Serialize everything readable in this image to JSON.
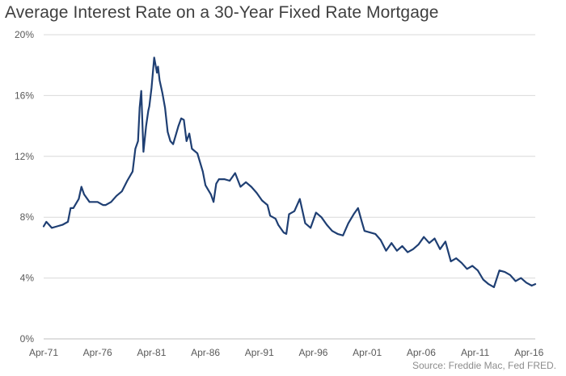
{
  "chart_data": {
    "type": "line",
    "title": "Average Interest Rate on a 30-Year Fixed Rate Mortgage",
    "source": "Source: Freddie Mac, Fed FRED.",
    "xlabel": "",
    "ylabel": "",
    "x_tick_labels": [
      "Apr-71",
      "Apr-76",
      "Apr-81",
      "Apr-86",
      "Apr-91",
      "Apr-96",
      "Apr-01",
      "Apr-06",
      "Apr-11",
      "Apr-16"
    ],
    "x_tick_years": [
      1971.25,
      1976.25,
      1981.25,
      1986.25,
      1991.25,
      1996.25,
      2001.25,
      2006.25,
      2011.25,
      2016.25
    ],
    "x_range": [
      1971.25,
      2016.83
    ],
    "y_tick_labels": [
      "0%",
      "4%",
      "8%",
      "12%",
      "16%",
      "20%"
    ],
    "y_ticks": [
      0,
      4,
      8,
      12,
      16,
      20
    ],
    "ylim": [
      0,
      20
    ],
    "grid": "horizontal",
    "line_color": "#1f3f73",
    "series": [
      {
        "x": [
          1971.25,
          1971.5,
          1971.75,
          1972.0,
          1972.5,
          1973.0,
          1973.5,
          1973.75,
          1974.0,
          1974.5,
          1974.75,
          1975.0,
          1975.5,
          1976.0,
          1976.25,
          1976.75,
          1977.0,
          1977.5,
          1978.0,
          1978.5,
          1979.0,
          1979.5,
          1979.75,
          1980.0,
          1980.15,
          1980.3,
          1980.5,
          1980.75,
          1980.95,
          1981.05,
          1981.25,
          1981.5,
          1981.75,
          1981.85,
          1982.0,
          1982.25,
          1982.5,
          1982.75,
          1983.0,
          1983.25,
          1983.5,
          1983.75,
          1984.0,
          1984.25,
          1984.5,
          1984.75,
          1985.0,
          1985.5,
          1986.0,
          1986.25,
          1986.75,
          1987.0,
          1987.25,
          1987.5,
          1988.0,
          1988.5,
          1989.0,
          1989.5,
          1990.0,
          1990.5,
          1991.0,
          1991.5,
          1992.0,
          1992.25,
          1992.75,
          1993.0,
          1993.5,
          1993.75,
          1994.0,
          1994.5,
          1995.0,
          1995.5,
          1996.0,
          1996.5,
          1997.0,
          1997.5,
          1998.0,
          1998.5,
          1999.0,
          1999.5,
          2000.0,
          2000.4,
          2000.75,
          2001.0,
          2001.5,
          2002.0,
          2002.5,
          2003.0,
          2003.5,
          2004.0,
          2004.5,
          2005.0,
          2005.5,
          2006.0,
          2006.5,
          2007.0,
          2007.5,
          2008.0,
          2008.5,
          2009.0,
          2009.5,
          2010.0,
          2010.5,
          2011.0,
          2011.5,
          2012.0,
          2012.5,
          2013.0,
          2013.5,
          2014.0,
          2014.5,
          2015.0,
          2015.5,
          2016.0,
          2016.5,
          2016.83
        ],
        "y": [
          7.4,
          7.7,
          7.5,
          7.3,
          7.4,
          7.5,
          7.7,
          8.6,
          8.6,
          9.2,
          10.0,
          9.5,
          9.0,
          9.0,
          9.0,
          8.8,
          8.8,
          9.0,
          9.4,
          9.7,
          10.4,
          11.0,
          12.5,
          13.0,
          15.2,
          16.3,
          12.3,
          14.0,
          15.0,
          15.3,
          16.5,
          18.5,
          17.5,
          17.9,
          17.0,
          16.2,
          15.2,
          13.6,
          13.0,
          12.8,
          13.4,
          14.0,
          14.5,
          14.4,
          13.0,
          13.5,
          12.5,
          12.2,
          11.0,
          10.1,
          9.5,
          9.0,
          10.2,
          10.5,
          10.5,
          10.4,
          10.9,
          10.0,
          10.3,
          10.0,
          9.6,
          9.1,
          8.8,
          8.1,
          7.9,
          7.5,
          7.0,
          6.9,
          8.2,
          8.4,
          9.2,
          7.6,
          7.3,
          8.3,
          8.0,
          7.5,
          7.1,
          6.9,
          6.8,
          7.6,
          8.2,
          8.6,
          7.7,
          7.1,
          7.0,
          6.9,
          6.5,
          5.8,
          6.3,
          5.8,
          6.1,
          5.7,
          5.9,
          6.2,
          6.7,
          6.3,
          6.6,
          5.9,
          6.4,
          5.1,
          5.3,
          5.0,
          4.6,
          4.8,
          4.5,
          3.9,
          3.6,
          3.4,
          4.5,
          4.4,
          4.2,
          3.8,
          4.0,
          3.7,
          3.5,
          3.6
        ]
      }
    ]
  }
}
